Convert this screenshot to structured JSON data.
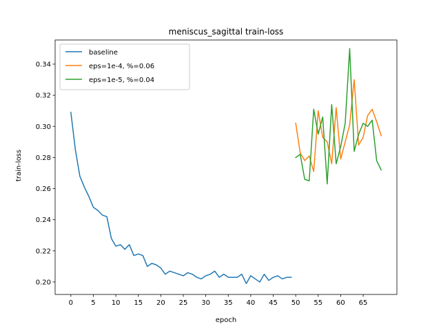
{
  "chart_data": {
    "type": "line",
    "title": "meniscus_sagittal train-loss",
    "xlabel": "epoch",
    "ylabel": "train-loss",
    "xlim": [
      -3.5,
      72.5
    ],
    "ylim": [
      0.192,
      0.3555
    ],
    "xticks": [
      0,
      5,
      10,
      15,
      20,
      25,
      30,
      35,
      40,
      45,
      50,
      55,
      60,
      65
    ],
    "yticks": [
      0.2,
      0.22,
      0.24,
      0.26,
      0.28,
      0.3,
      0.32,
      0.34
    ],
    "grid": false,
    "legend_position": "top-left",
    "series": [
      {
        "name": "baseline",
        "color": "#1f77b4",
        "x": [
          0,
          1,
          2,
          3,
          4,
          5,
          6,
          7,
          8,
          9,
          10,
          11,
          12,
          13,
          14,
          15,
          16,
          17,
          18,
          19,
          20,
          21,
          22,
          23,
          24,
          25,
          26,
          27,
          28,
          29,
          30,
          31,
          32,
          33,
          34,
          35,
          36,
          37,
          38,
          39,
          40,
          41,
          42,
          43,
          44,
          45,
          46,
          47,
          48,
          49
        ],
        "values": [
          0.309,
          0.285,
          0.268,
          0.261,
          0.255,
          0.248,
          0.246,
          0.243,
          0.242,
          0.228,
          0.223,
          0.224,
          0.221,
          0.224,
          0.217,
          0.218,
          0.217,
          0.21,
          0.212,
          0.211,
          0.209,
          0.205,
          0.207,
          0.206,
          0.205,
          0.204,
          0.206,
          0.205,
          0.203,
          0.202,
          0.204,
          0.205,
          0.207,
          0.203,
          0.205,
          0.203,
          0.203,
          0.203,
          0.205,
          0.199,
          0.204,
          0.202,
          0.2,
          0.205,
          0.201,
          0.203,
          0.204,
          0.202,
          0.203,
          0.203
        ]
      },
      {
        "name": "eps=1e-4, %=0.06",
        "color": "#ff7f0e",
        "x": [
          50,
          51,
          52,
          53,
          54,
          55,
          56,
          57,
          58,
          59,
          60,
          61,
          62,
          63,
          64,
          65,
          66,
          67,
          68,
          69
        ],
        "values": [
          0.302,
          0.283,
          0.278,
          0.281,
          0.271,
          0.31,
          0.293,
          0.29,
          0.276,
          0.312,
          0.279,
          0.29,
          0.301,
          0.33,
          0.288,
          0.293,
          0.307,
          0.311,
          0.303,
          0.294
        ]
      },
      {
        "name": "eps=1e-5, %=0.04",
        "color": "#2ca02c",
        "x": [
          50,
          51,
          52,
          53,
          54,
          55,
          56,
          57,
          58,
          59,
          60,
          61,
          62,
          63,
          64,
          65,
          66,
          67,
          68,
          69
        ],
        "values": [
          0.28,
          0.282,
          0.266,
          0.265,
          0.311,
          0.295,
          0.306,
          0.263,
          0.314,
          0.276,
          0.287,
          0.302,
          0.35,
          0.284,
          0.295,
          0.302,
          0.3,
          0.304,
          0.278,
          0.272
        ]
      }
    ]
  }
}
